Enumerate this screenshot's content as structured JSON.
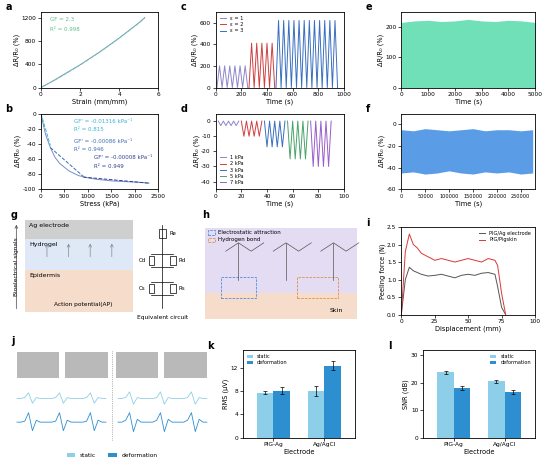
{
  "chart_data": [
    {
      "panel": "a",
      "type": "line",
      "xlabel": "Strain (mm/mm)",
      "ylabel": "ΔR/R₀ (%)",
      "xlim": [
        0,
        6
      ],
      "xticks": [
        0,
        2,
        4,
        6
      ],
      "ylim": [
        0,
        1300
      ],
      "yticks": [
        0,
        400,
        800,
        1200
      ],
      "annotations": [
        {
          "text": "GF = 2.3",
          "color": "#5fbf8f"
        },
        {
          "text": "R² = 0.998",
          "color": "#5fbf8f"
        }
      ],
      "series": [
        {
          "color": "#6f8fd0",
          "line_style": "solid",
          "x": [
            0,
            0.5,
            1,
            1.5,
            2,
            2.5,
            3,
            3.5,
            4,
            4.5,
            5,
            5.3
          ],
          "values": [
            0,
            90,
            190,
            290,
            390,
            500,
            610,
            730,
            850,
            980,
            1110,
            1200
          ]
        },
        {
          "color": "#7ccba2",
          "line_style": "dashed",
          "x": [
            0,
            1,
            2,
            3,
            4,
            5,
            5.3
          ],
          "values": [
            0,
            180,
            385,
            605,
            845,
            1105,
            1190
          ]
        }
      ]
    },
    {
      "panel": "b",
      "type": "line",
      "xlabel": "Stress (kPa)",
      "ylabel": "ΔR/R₀ (%)",
      "xlim": [
        0,
        2500
      ],
      "xticks": [
        0,
        500,
        1000,
        1500,
        2000,
        2500
      ],
      "ylim": [
        -100,
        0
      ],
      "yticks": [
        -100,
        -80,
        -60,
        -40,
        -20,
        0
      ],
      "annotations": [
        {
          "text": "GF' = -0.01316 kPa⁻¹",
          "color": "#37b3d9"
        },
        {
          "text": "R² = 0.815",
          "color": "#37b3d9"
        },
        {
          "text": "GF' = -0.00086 kPa⁻¹",
          "color": "#3b6fb6"
        },
        {
          "text": "R² = 0.946",
          "color": "#3b6fb6"
        },
        {
          "text": "GF' = -0.00008 kPa⁻¹",
          "color": "#2f3f8f"
        },
        {
          "text": "R² = 0.949",
          "color": "#2f3f8f"
        }
      ],
      "series": [
        {
          "color": "#7b8cc4",
          "line_style": "solid",
          "x": [
            0,
            50,
            100,
            200,
            300,
            400,
            600,
            800,
            1000,
            1200,
            1500,
            1800,
            2100,
            2300
          ],
          "values": [
            0,
            -15,
            -28,
            -45,
            -58,
            -66,
            -76,
            -82,
            -85,
            -87,
            -89,
            -90,
            -91,
            -92
          ]
        },
        {
          "color": "#37b3d9",
          "line_style": "dashed",
          "x": [
            0,
            200
          ],
          "values": [
            0,
            -42
          ]
        },
        {
          "color": "#3b6fb6",
          "line_style": "dashed",
          "x": [
            200,
            900
          ],
          "values": [
            -45,
            -83
          ]
        },
        {
          "color": "#2f3f8f",
          "line_style": "dashed",
          "x": [
            900,
            2300
          ],
          "values": [
            -84,
            -92
          ]
        }
      ]
    },
    {
      "panel": "c",
      "type": "line",
      "xlabel": "Time (s)",
      "ylabel": "ΔR/R₀ (%)",
      "legend": "upper left",
      "xlim": [
        0,
        1000
      ],
      "xticks": [
        0,
        200,
        400,
        600,
        800,
        1000
      ],
      "ylim": [
        0,
        700
      ],
      "yticks": [
        0,
        200,
        400,
        600
      ],
      "series": [
        {
          "name": "ε = 1",
          "color": "#8e86c9",
          "line_style": "solid",
          "x": [
            10,
            30,
            50,
            70,
            90,
            110,
            130,
            150,
            170,
            190,
            210,
            230,
            250
          ],
          "values": [
            0,
            200,
            0,
            200,
            0,
            200,
            0,
            200,
            0,
            200,
            0,
            200,
            0
          ]
        },
        {
          "name": "ε = 2",
          "color": "#d04040",
          "line_style": "solid",
          "x": [
            260,
            280,
            300,
            320,
            340,
            360,
            380,
            400,
            420,
            440,
            460
          ],
          "values": [
            0,
            410,
            0,
            410,
            0,
            410,
            0,
            410,
            0,
            410,
            0
          ]
        },
        {
          "name": "ε = 3",
          "color": "#3a6fc0",
          "line_style": "solid",
          "x": [
            470,
            490,
            510,
            530,
            550,
            570,
            590,
            610,
            630,
            650,
            670,
            690,
            710,
            730,
            750,
            770,
            790,
            810,
            830,
            850,
            870,
            890,
            910,
            930,
            950
          ],
          "values": [
            0,
            620,
            0,
            620,
            0,
            620,
            0,
            620,
            0,
            620,
            0,
            620,
            0,
            620,
            0,
            620,
            0,
            620,
            0,
            620,
            0,
            620,
            0,
            620,
            0
          ]
        }
      ]
    },
    {
      "panel": "d",
      "type": "line",
      "xlabel": "Time (s)",
      "ylabel": "ΔR/R₀ (%)",
      "legend": "lower left",
      "xlim": [
        0,
        100
      ],
      "xticks": [
        0,
        20,
        40,
        60,
        80,
        100
      ],
      "ylim": [
        -45,
        5
      ],
      "yticks": [
        -40,
        -30,
        -20,
        -10,
        0
      ],
      "series": [
        {
          "name": "1 kPa",
          "color": "#8e86c9",
          "line_style": "solid",
          "x": [
            2,
            4,
            6,
            8,
            10,
            12,
            14,
            16,
            18
          ],
          "values": [
            0,
            -3,
            0,
            -3,
            0,
            -3,
            0,
            -3,
            0
          ]
        },
        {
          "name": "2 kPa",
          "color": "#d04040",
          "line_style": "solid",
          "x": [
            20,
            22,
            24,
            26,
            28,
            30,
            32,
            34,
            36
          ],
          "values": [
            0,
            -10,
            0,
            -10,
            0,
            -10,
            0,
            -10,
            0
          ]
        },
        {
          "name": "3 kPa",
          "color": "#3a6fc0",
          "line_style": "solid",
          "x": [
            38,
            40,
            42,
            44,
            46,
            48,
            50,
            52,
            54
          ],
          "values": [
            0,
            -17,
            0,
            -17,
            0,
            -17,
            0,
            -17,
            0
          ]
        },
        {
          "name": "5 kPa",
          "color": "#4aa36a",
          "line_style": "solid",
          "x": [
            56,
            58,
            60,
            62,
            64,
            66,
            68,
            70,
            72
          ],
          "values": [
            0,
            -25,
            0,
            -25,
            0,
            -25,
            0,
            -25,
            0
          ]
        },
        {
          "name": "7 kPa",
          "color": "#9a5ec8",
          "line_style": "solid",
          "x": [
            74,
            76,
            78,
            80,
            82,
            84,
            86,
            88,
            90
          ],
          "values": [
            0,
            -30,
            0,
            -30,
            0,
            -30,
            0,
            -30,
            0
          ]
        }
      ]
    },
    {
      "panel": "e",
      "type": "area",
      "xlabel": "Time (s)",
      "ylabel": "ΔR/R₀ (%)",
      "xlim": [
        0,
        5000
      ],
      "xticks": [
        0,
        1000,
        2000,
        3000,
        4000,
        5000
      ],
      "ylim": [
        0,
        250
      ],
      "yticks": [
        0,
        100,
        200
      ],
      "series": [
        {
          "color": "#6fe0b8",
          "x": [
            0,
            500,
            1000,
            1500,
            2000,
            2500,
            3000,
            3500,
            4000,
            4500,
            5000
          ],
          "values": [
            215,
            220,
            222,
            218,
            220,
            225,
            220,
            218,
            222,
            220,
            215
          ],
          "lower": [
            0,
            0,
            0,
            0,
            0,
            0,
            0,
            0,
            0,
            0,
            0
          ]
        }
      ]
    },
    {
      "panel": "f",
      "type": "area",
      "xlabel": "Time (s)",
      "ylabel": "ΔR/R₀ (%)",
      "xlim": [
        0,
        280000
      ],
      "xticks": [
        0,
        50000,
        100000,
        150000,
        200000,
        250000
      ],
      "ylim": [
        -60,
        10
      ],
      "yticks": [
        -60,
        -40,
        -20,
        0
      ],
      "series": [
        {
          "color": "#5b9ce6",
          "x": [
            0,
            25000,
            50000,
            75000,
            100000,
            125000,
            150000,
            175000,
            200000,
            225000,
            250000,
            275000
          ],
          "values": [
            -5,
            -6,
            -4,
            -5,
            -6,
            -5,
            -4,
            -6,
            -5,
            -5,
            -6,
            -5
          ],
          "lower": [
            -45,
            -44,
            -46,
            -45,
            -43,
            -45,
            -46,
            -44,
            -45,
            -44,
            -46,
            -45
          ]
        }
      ]
    },
    {
      "panel": "i",
      "type": "line",
      "xlabel": "Displacement (mm)",
      "ylabel": "Peeling force (N)",
      "legend": "upper right",
      "xlim": [
        0,
        100
      ],
      "xticks": [
        0,
        25,
        50,
        75,
        100
      ],
      "ylim": [
        0,
        2.5
      ],
      "yticks": [
        {
          "value": 0,
          "label": "0.0"
        },
        {
          "value": 0.5,
          "label": "0.5"
        },
        {
          "value": 1,
          "label": "1.0"
        },
        {
          "value": 1.5,
          "label": "1.5"
        },
        {
          "value": 2,
          "label": "2.0"
        },
        {
          "value": 2.5,
          "label": "2.5"
        }
      ],
      "series": [
        {
          "name": "PIG/Ag electrode",
          "color": "#555555",
          "line_style": "solid",
          "x": [
            0,
            3,
            6,
            9,
            12,
            15,
            20,
            25,
            30,
            35,
            40,
            45,
            50,
            55,
            60,
            65,
            70,
            72,
            75,
            78
          ],
          "values": [
            0,
            1.0,
            1.35,
            1.25,
            1.2,
            1.15,
            1.1,
            1.12,
            1.15,
            1.1,
            1.05,
            1.12,
            1.15,
            1.12,
            1.18,
            1.2,
            1.15,
            0.8,
            0.2,
            0
          ]
        },
        {
          "name": "PIG/Pigskin",
          "color": "#d93838",
          "line_style": "solid",
          "x": [
            0,
            3,
            6,
            9,
            12,
            15,
            20,
            25,
            30,
            35,
            40,
            45,
            50,
            55,
            60,
            65,
            70,
            72,
            75,
            78
          ],
          "values": [
            0,
            1.8,
            2.3,
            2.0,
            1.9,
            1.75,
            1.65,
            1.55,
            1.6,
            1.55,
            1.5,
            1.55,
            1.6,
            1.55,
            1.5,
            1.6,
            1.55,
            1.4,
            0.6,
            0
          ]
        }
      ]
    },
    {
      "panel": "k",
      "type": "bar",
      "xlabel": "Electrode",
      "ylabel": "RMS (μV)",
      "legend": "upper left",
      "categories": [
        "PIG-Ag",
        "Ag/AgCl"
      ],
      "ylim": [
        0,
        15
      ],
      "yticks": [
        0,
        4,
        8,
        12
      ],
      "series": [
        {
          "name": "static",
          "color": "#8dcfe8",
          "values": [
            7.7,
            8.0
          ],
          "errors": [
            0.2,
            0.8
          ]
        },
        {
          "name": "deformation",
          "color": "#2d8fd0",
          "values": [
            8.0,
            12.3
          ],
          "errors": [
            0.6,
            0.8
          ]
        }
      ]
    },
    {
      "panel": "l",
      "type": "bar",
      "xlabel": "Electrode",
      "ylabel": "SNR (dB)",
      "legend": "upper right",
      "categories": [
        "PIG-Ag",
        "Ag/AgCl"
      ],
      "ylim": [
        0,
        32
      ],
      "yticks": [
        0,
        10,
        20,
        30
      ],
      "series": [
        {
          "name": "static",
          "color": "#8dcfe8",
          "values": [
            23.8,
            20.5
          ],
          "errors": [
            0.4,
            0.5
          ]
        },
        {
          "name": "deformation",
          "color": "#2d8fd0",
          "values": [
            18.0,
            16.6
          ],
          "errors": [
            0.7,
            0.8
          ]
        }
      ]
    }
  ],
  "diagrams": [
    {
      "panel": "g",
      "kind": "interface",
      "layers": [
        "Ag electrode",
        "Hydrogel",
        "Epidermis"
      ],
      "side_label": "Bioelectrical signals",
      "signal": "Action potential(AP)",
      "circuit_title": "Equivalent circuit",
      "circuit": [
        "Re",
        "Cd",
        "Rd",
        "Cs",
        "Rs"
      ]
    },
    {
      "panel": "h",
      "kind": "adhesion",
      "bonds": [
        "Electrostatic attraction",
        "Hydrogen bond"
      ],
      "substrate": "Skin"
    },
    {
      "panel": "j",
      "kind": "signals",
      "labels": [
        "static",
        "deformation"
      ],
      "colors": [
        "#8dcfe8",
        "#2d8fd0"
      ],
      "traces": [
        [
          0,
          0,
          0.1,
          0.6,
          -0.5,
          0.1,
          0,
          0,
          0,
          0,
          0.1,
          0.6,
          -0.5,
          0.1,
          0,
          0,
          0,
          0,
          0.1,
          0.6,
          -0.5,
          0.1,
          0,
          0
        ],
        [
          0,
          0,
          0.1,
          1.0,
          -0.9,
          0.2,
          0,
          0,
          0,
          0,
          0.1,
          1.0,
          -0.9,
          0.2,
          0,
          0,
          0,
          0,
          0.1,
          1.0,
          -0.9,
          0.2,
          0,
          0
        ],
        [
          0,
          0,
          0.1,
          0.7,
          -0.6,
          0.1,
          0,
          0,
          0,
          0,
          0.1,
          0.7,
          -0.6,
          0.1,
          0,
          0,
          0,
          0,
          0.1,
          0.7,
          -0.6,
          0.1,
          0,
          0
        ],
        [
          0,
          0,
          0.2,
          1.0,
          -1.0,
          0.3,
          0,
          0,
          0,
          0,
          0.2,
          1.0,
          -1.0,
          0.3,
          0,
          0,
          0,
          0,
          0.2,
          1.0,
          -1.0,
          0.3,
          0,
          0
        ]
      ]
    }
  ]
}
